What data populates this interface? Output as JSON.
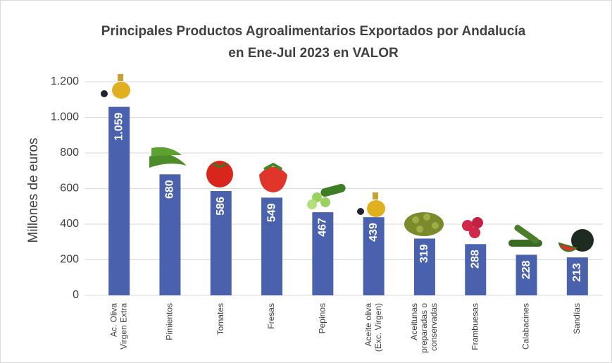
{
  "chart_data": {
    "type": "bar",
    "title": [
      "Principales Productos Agroalimentarios Exportados por Andalucía",
      "en Ene-Jul 2023 en VALOR"
    ],
    "y_label": "Millones de euros",
    "categories": [
      [
        "Ac. Oliva",
        "Virgen Extra"
      ],
      [
        "Pimientos"
      ],
      [
        "Tomates"
      ],
      [
        "Fresas"
      ],
      [
        "Pepinos"
      ],
      [
        "Aceite oliva",
        "(Exc. Virgen)"
      ],
      [
        "Aceitunas",
        "preparadas o",
        "conservadas"
      ],
      [
        "Frambuesas"
      ],
      [
        "Calabacines"
      ],
      [
        "Sandías"
      ]
    ],
    "values": [
      1059,
      680,
      586,
      549,
      467,
      439,
      319,
      288,
      228,
      213
    ],
    "value_labels": [
      "1.059",
      "680",
      "586",
      "549",
      "467",
      "439",
      "319",
      "288",
      "228",
      "213"
    ],
    "color": "#4a62ad",
    "ylim": [
      0,
      1200
    ],
    "yticks": [
      0,
      200,
      400,
      600,
      800,
      {
        "value": 1000,
        "label": "1.000"
      },
      {
        "value": 1200,
        "label": "1.200"
      }
    ],
    "grid": true
  }
}
